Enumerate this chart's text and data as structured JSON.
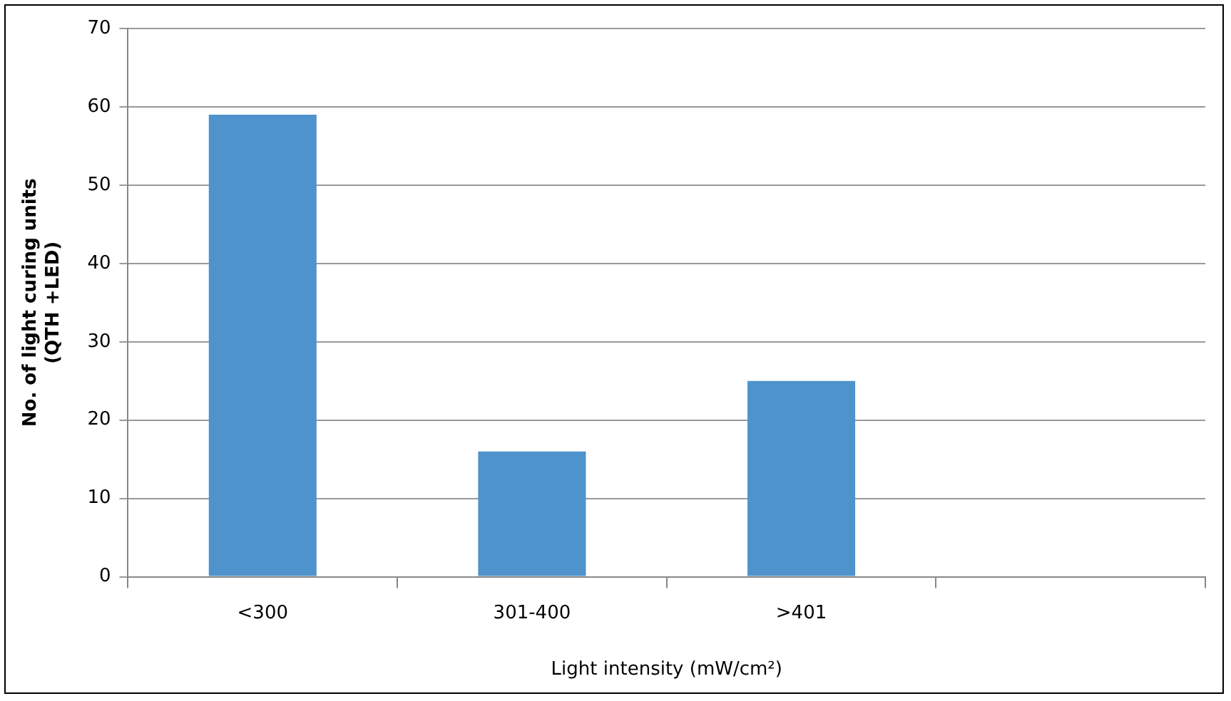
{
  "chart_data": {
    "type": "bar",
    "xlabel": "Light intensity (mW/cm²)",
    "ylabel": "No. of light curing units\n(QTH +LED)",
    "categories": [
      "<300",
      "301-400",
      ">401",
      null
    ],
    "values": [
      59,
      16,
      25,
      null
    ],
    "color": "#4f93cc",
    "ylim": [
      0,
      70
    ],
    "yticks": [
      0,
      10,
      20,
      30,
      40,
      50,
      60,
      70
    ],
    "grid": "y",
    "legend": false
  }
}
